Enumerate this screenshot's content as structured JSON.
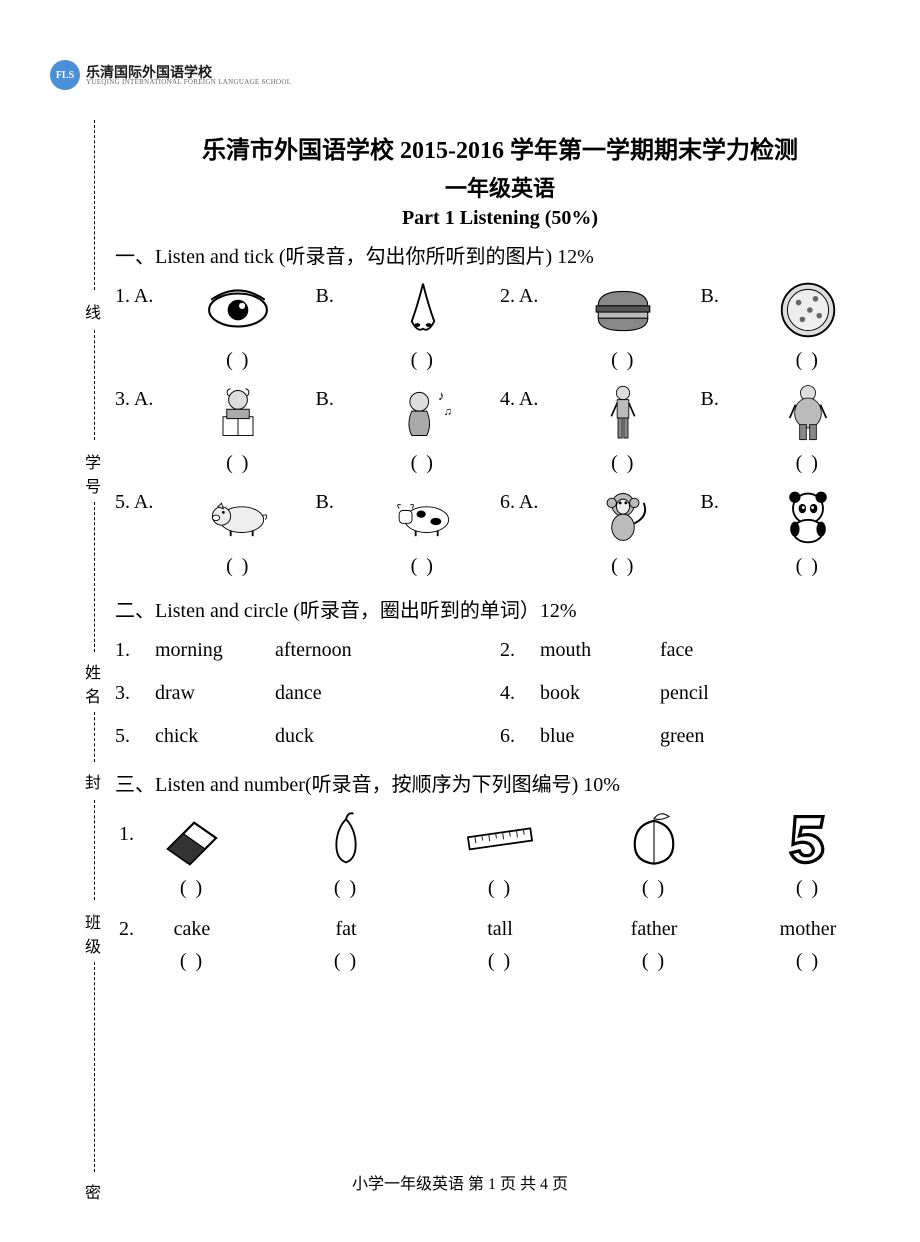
{
  "logo": {
    "badge": "FLS",
    "cn": "乐清国际外国语学校",
    "en": "YUEQING INTERNATIONAL FOREIGN LANGUAGE SCHOOL"
  },
  "binding_labels": [
    "线",
    "学号",
    "姓名",
    "封",
    "班级",
    "密"
  ],
  "title_main": "乐清市外国语学校 2015-2016 学年第一学期期末学力检测",
  "title_sub": "一年级英语",
  "part_title": "Part 1      Listening (50%)",
  "section1": {
    "heading": "一、Listen and tick (听录音，勾出你所听到的图片) 12%",
    "items": [
      {
        "n": "1.",
        "a": "A.",
        "b": "B.",
        "ia": "eye",
        "ib": "nose"
      },
      {
        "n": "2.",
        "a": "A.",
        "b": "B.",
        "ia": "burger",
        "ib": "pizza"
      },
      {
        "n": "3.",
        "a": "A.",
        "b": "B.",
        "ia": "girl-read",
        "ib": "girl-sing"
      },
      {
        "n": "4.",
        "a": "A.",
        "b": "B.",
        "ia": "boy-thin",
        "ib": "boy-fat"
      },
      {
        "n": "5.",
        "a": "A.",
        "b": "B.",
        "ia": "pig",
        "ib": "cow"
      },
      {
        "n": "6.",
        "a": "A.",
        "b": "B.",
        "ia": "monkey",
        "ib": "panda"
      }
    ],
    "paren": "(       )"
  },
  "section2": {
    "heading": "二、Listen and circle (听录音，圈出听到的单词）12%",
    "items": [
      {
        "n": "1.",
        "a": "morning",
        "b": "afternoon"
      },
      {
        "n": "2.",
        "a": "mouth",
        "b": "face"
      },
      {
        "n": "3.",
        "a": "draw",
        "b": "dance"
      },
      {
        "n": "4.",
        "a": "book",
        "b": "pencil"
      },
      {
        "n": "5.",
        "a": "chick",
        "b": "duck"
      },
      {
        "n": "6.",
        "a": "blue",
        "b": "green"
      }
    ]
  },
  "section3": {
    "heading": "三、Listen and number(听录音，按顺序为下列图编号) 10%",
    "row1_label": "1.",
    "row1": [
      {
        "icon": "eraser",
        "label": ""
      },
      {
        "icon": "pear",
        "label": ""
      },
      {
        "icon": "ruler",
        "label": ""
      },
      {
        "icon": "peach",
        "label": ""
      },
      {
        "icon": "five",
        "label": ""
      }
    ],
    "row2_label": "2.",
    "row2": [
      {
        "label": "cake"
      },
      {
        "label": "fat"
      },
      {
        "label": "tall"
      },
      {
        "label": "father"
      },
      {
        "label": "mother"
      }
    ],
    "paren": "(        )"
  },
  "footer": "小学一年级英语    第 1 页 共 4 页"
}
